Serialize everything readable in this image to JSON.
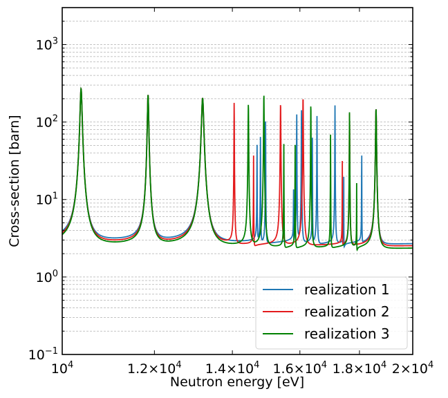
{
  "chart_data": {
    "type": "line",
    "xlabel": "Neutron energy [eV]",
    "ylabel": "Cross-section [barn]",
    "xscale": "log",
    "yscale": "log",
    "xlim": [
      10000,
      20000
    ],
    "ylim": [
      0.1,
      3000
    ],
    "grid": "y-major-and-minor-dashed",
    "legend_position": "lower-right",
    "x_ticks": [
      {
        "value": 10000,
        "mant": "",
        "exp": "4"
      },
      {
        "value": 12000,
        "mant": "1.2",
        "exp": "4"
      },
      {
        "value": 14000,
        "mant": "1.4",
        "exp": "4"
      },
      {
        "value": 16000,
        "mant": "1.6",
        "exp": "4"
      },
      {
        "value": 18000,
        "mant": "1.8",
        "exp": "4"
      },
      {
        "value": 20000,
        "mant": "2",
        "exp": "4"
      }
    ],
    "y_ticks": [
      {
        "value": 0.1,
        "exp": "−1"
      },
      {
        "value": 1,
        "exp": "0"
      },
      {
        "value": 10,
        "exp": "1"
      },
      {
        "value": 100,
        "exp": "2"
      },
      {
        "value": 1000,
        "exp": "3"
      }
    ],
    "base_label": "10",
    "times_label": "×",
    "series": [
      {
        "name": "realization 1",
        "color": "#1f77b4",
        "baseline": 8.0,
        "resonances": [
          {
            "e0": 10380,
            "peak": 265,
            "width": 40
          },
          {
            "e0": 11850,
            "peak": 220,
            "width": 30
          },
          {
            "e0": 13200,
            "peak": 200,
            "width": 55
          },
          {
            "e0": 14700,
            "peak": 52,
            "width": 6
          },
          {
            "e0": 14800,
            "peak": 72,
            "width": 6
          },
          {
            "e0": 14950,
            "peak": 120,
            "width": 6
          },
          {
            "e0": 15800,
            "peak": 12,
            "width": 4
          },
          {
            "e0": 15900,
            "peak": 125,
            "width": 8
          },
          {
            "e0": 16050,
            "peak": 165,
            "width": 8
          },
          {
            "e0": 16400,
            "peak": 60,
            "width": 6
          },
          {
            "e0": 16550,
            "peak": 115,
            "width": 8
          },
          {
            "e0": 17150,
            "peak": 160,
            "width": 8
          },
          {
            "e0": 17450,
            "peak": 15,
            "width": 4
          },
          {
            "e0": 18080,
            "peak": 55,
            "width": 5
          },
          {
            "e0": 18600,
            "peak": 145,
            "width": 28
          }
        ]
      },
      {
        "name": "realization 2",
        "color": "#e31a1c",
        "baseline": 7.5,
        "resonances": [
          {
            "e0": 10380,
            "peak": 265,
            "width": 40
          },
          {
            "e0": 11850,
            "peak": 220,
            "width": 30
          },
          {
            "e0": 13200,
            "peak": 200,
            "width": 55
          },
          {
            "e0": 14050,
            "peak": 185,
            "width": 8
          },
          {
            "e0": 14600,
            "peak": 33,
            "width": 6
          },
          {
            "e0": 15400,
            "peak": 175,
            "width": 14
          },
          {
            "e0": 16100,
            "peak": 215,
            "width": 14
          },
          {
            "e0": 17400,
            "peak": 27,
            "width": 5
          },
          {
            "e0": 17650,
            "peak": 135,
            "width": 10
          },
          {
            "e0": 18600,
            "peak": 145,
            "width": 28
          }
        ]
      },
      {
        "name": "realization 3",
        "color": "#008000",
        "baseline": 7.0,
        "resonances": [
          {
            "e0": 10380,
            "peak": 265,
            "width": 40
          },
          {
            "e0": 11850,
            "peak": 220,
            "width": 30
          },
          {
            "e0": 13200,
            "peak": 200,
            "width": 55
          },
          {
            "e0": 14450,
            "peak": 170,
            "width": 14
          },
          {
            "e0": 14900,
            "peak": 225,
            "width": 14
          },
          {
            "e0": 15500,
            "peak": 48,
            "width": 6
          },
          {
            "e0": 15850,
            "peak": 50,
            "width": 6
          },
          {
            "e0": 16350,
            "peak": 185,
            "width": 10
          },
          {
            "e0": 17000,
            "peak": 70,
            "width": 6
          },
          {
            "e0": 17650,
            "peak": 140,
            "width": 10
          },
          {
            "e0": 17900,
            "peak": 14,
            "width": 4
          },
          {
            "e0": 18600,
            "peak": 145,
            "width": 28
          }
        ]
      }
    ]
  }
}
